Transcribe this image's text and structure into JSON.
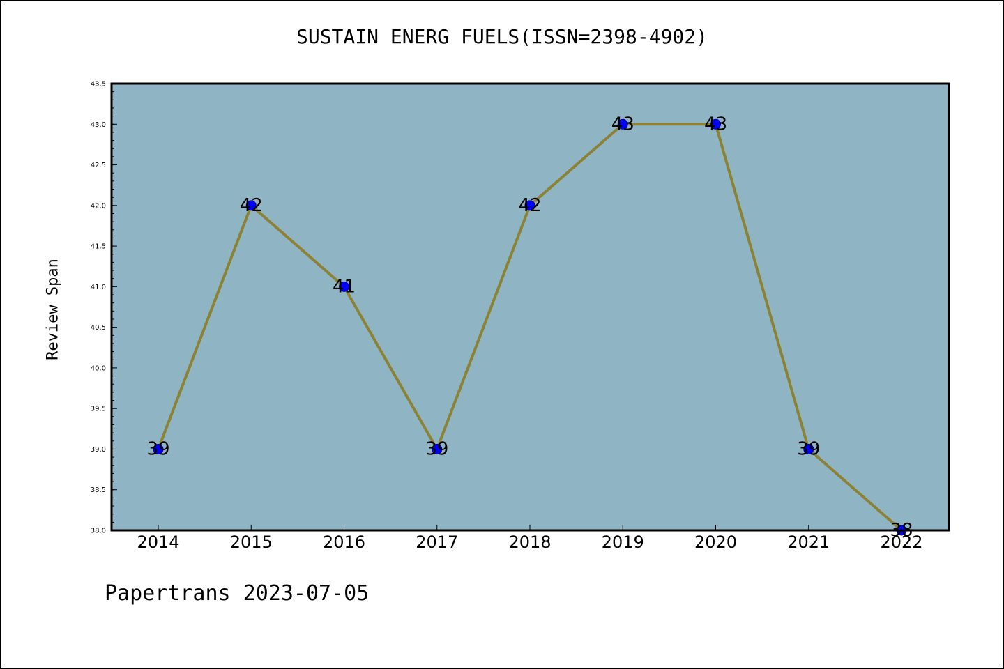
{
  "title": "SUSTAIN ENERG FUELS(ISSN=2398-4902)",
  "footer": "Papertrans 2023-07-05",
  "colors": {
    "plot_background": "#8fb5c4",
    "line": "#8b8236",
    "marker": "#0000ff",
    "marker_edge": "#00008b"
  },
  "chart_data": {
    "type": "line",
    "title": "SUSTAIN ENERG FUELS(ISSN=2398-4902)",
    "xlabel": "",
    "ylabel": "Review Span",
    "x": [
      "2014",
      "2015",
      "2016",
      "2017",
      "2018",
      "2019",
      "2020",
      "2021",
      "2022"
    ],
    "values": [
      39,
      42,
      41,
      39,
      42,
      43,
      43,
      39,
      38
    ],
    "data_labels": [
      "39",
      "42",
      "41",
      "39",
      "42",
      "43",
      "43",
      "39",
      "38"
    ],
    "ylim": [
      38.0,
      43.5
    ],
    "yticks": [
      "38.0",
      "38.5",
      "39.0",
      "39.5",
      "40.0",
      "40.5",
      "41.0",
      "41.5",
      "42.0",
      "42.5",
      "43.0",
      "43.5"
    ],
    "grid": false,
    "legend": "none"
  }
}
